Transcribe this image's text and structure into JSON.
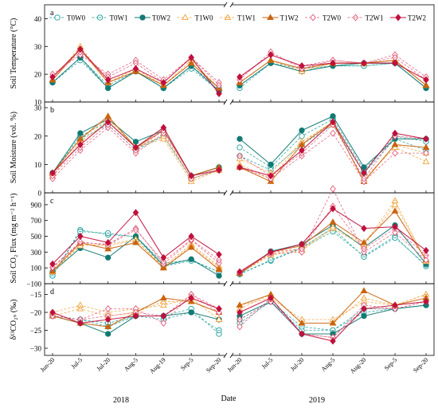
{
  "figure": {
    "xlabel": "Date",
    "year_labels": [
      "2018",
      "2019"
    ],
    "x_categories_2018": [
      "Jun-20",
      "Jul-5",
      "Jul-20",
      "Aug-5",
      "Aug-19",
      "Sep-5",
      "Sep-20"
    ],
    "x_categories_2019": [
      "Jun-20",
      "Jul-5",
      "Jul-20",
      "Aug-5",
      "Aug-20",
      "Sep-5",
      "Sep-20"
    ],
    "legend": [
      {
        "name": "T0W0",
        "color": "#1a9e9a",
        "marker": "circle",
        "filled": false,
        "dash": "dash"
      },
      {
        "name": "T0W1",
        "color": "#1a9e9a",
        "marker": "circle-x",
        "filled": false,
        "dash": "dash"
      },
      {
        "name": "T0W2",
        "color": "#127a73",
        "marker": "circle",
        "filled": true,
        "dash": "solid"
      },
      {
        "name": "T1W0",
        "color": "#f0a23a",
        "marker": "triangle",
        "filled": false,
        "dash": "dash"
      },
      {
        "name": "T1W1",
        "color": "#f0a23a",
        "marker": "triangle-x",
        "filled": false,
        "dash": "dash"
      },
      {
        "name": "T1W2",
        "color": "#c9640f",
        "marker": "triangle",
        "filled": true,
        "dash": "solid"
      },
      {
        "name": "T2W0",
        "color": "#e05a78",
        "marker": "diamond",
        "filled": false,
        "dash": "dash"
      },
      {
        "name": "T2W1",
        "color": "#e05a78",
        "marker": "diamond-x",
        "filled": false,
        "dash": "dash"
      },
      {
        "name": "T2W2",
        "color": "#c0103c",
        "marker": "diamond",
        "filled": true,
        "dash": "solid"
      }
    ]
  },
  "chart_data": [
    {
      "panel": "a",
      "type": "line",
      "ylabel": "Soil Temperature (°C)",
      "ylim": [
        10,
        45
      ],
      "yticks": [
        10,
        20,
        30,
        40
      ],
      "series": [
        {
          "name": "T0W0",
          "values_2018": [
            17,
            26,
            16,
            21,
            15,
            23,
            15
          ],
          "values_2019": [
            16,
            24,
            22,
            23,
            23,
            24,
            15
          ]
        },
        {
          "name": "T0W1",
          "values_2018": [
            17,
            25,
            15,
            21,
            15,
            22,
            14
          ],
          "values_2019": [
            15,
            24,
            21,
            23,
            23,
            24,
            15
          ]
        },
        {
          "name": "T0W2",
          "values_2018": [
            17,
            26,
            15,
            21,
            15,
            23,
            14
          ],
          "values_2019": [
            16,
            24,
            21,
            23,
            24,
            24,
            15
          ]
        },
        {
          "name": "T1W0",
          "values_2018": [
            18,
            29,
            17,
            22,
            16,
            24,
            15
          ],
          "values_2019": [
            17,
            25,
            22,
            24,
            24,
            25,
            16
          ]
        },
        {
          "name": "T1W1",
          "values_2018": [
            18,
            30,
            17,
            22,
            16,
            25,
            15
          ],
          "values_2019": [
            17,
            25,
            21,
            24,
            24,
            25,
            16
          ]
        },
        {
          "name": "T1W2",
          "values_2018": [
            18,
            29,
            17,
            21,
            16,
            24,
            15
          ],
          "values_2019": [
            17,
            25,
            22,
            24,
            24,
            25,
            16
          ]
        },
        {
          "name": "T2W0",
          "values_2018": [
            20,
            27,
            20,
            25,
            18,
            26,
            17
          ],
          "values_2019": [
            19,
            27,
            23,
            25,
            24,
            27,
            19
          ]
        },
        {
          "name": "T2W1",
          "values_2018": [
            19,
            28,
            19,
            24,
            17,
            26,
            16
          ],
          "values_2019": [
            18,
            28,
            22,
            25,
            24,
            26,
            18
          ]
        },
        {
          "name": "T2W2",
          "values_2018": [
            19,
            29,
            18,
            22,
            17,
            26,
            13
          ],
          "values_2019": [
            19,
            27,
            23,
            24,
            24,
            24,
            18
          ]
        }
      ]
    },
    {
      "panel": "b",
      "type": "line",
      "ylabel": "Soil Moisture (vol. %)",
      "ylim": [
        0,
        32
      ],
      "yticks": [
        0,
        10,
        20,
        30
      ],
      "series": [
        {
          "name": "T0W0",
          "values_2018": [
            7,
            20,
            25,
            16,
            20,
            5,
            8
          ],
          "values_2019": [
            16,
            9,
            20,
            26,
            8,
            20,
            18
          ]
        },
        {
          "name": "T0W1",
          "values_2018": [
            7,
            19,
            24,
            15,
            20,
            5,
            8
          ],
          "values_2019": [
            13,
            8,
            17,
            24,
            7,
            19,
            15
          ]
        },
        {
          "name": "T0W2",
          "values_2018": [
            7,
            21,
            26,
            18,
            22,
            6,
            9
          ],
          "values_2019": [
            19,
            10,
            22,
            27,
            9,
            19,
            19
          ]
        },
        {
          "name": "T1W0",
          "values_2018": [
            6,
            18,
            25,
            16,
            19,
            4,
            8
          ],
          "values_2019": [
            12,
            7,
            18,
            24,
            5,
            16,
            11
          ]
        },
        {
          "name": "T1W1",
          "values_2018": [
            7,
            19,
            26,
            16,
            20,
            5,
            8
          ],
          "values_2019": [
            10,
            5,
            18,
            25,
            4,
            17,
            14
          ]
        },
        {
          "name": "T1W2",
          "values_2018": [
            7,
            19,
            27,
            16,
            22,
            6,
            9
          ],
          "values_2019": [
            9,
            4,
            17,
            25,
            4,
            17,
            16
          ]
        },
        {
          "name": "T2W0",
          "values_2018": [
            5,
            15,
            23,
            14,
            21,
            5,
            8
          ],
          "values_2019": [
            9,
            5,
            13,
            21,
            4,
            14,
            14
          ]
        },
        {
          "name": "T2W1",
          "values_2018": [
            6,
            16,
            24,
            15,
            22,
            6,
            8
          ],
          "values_2019": [
            13,
            6,
            14,
            24,
            5,
            20,
            19
          ]
        },
        {
          "name": "T2W2",
          "values_2018": [
            7,
            17,
            25,
            16,
            23,
            6,
            8
          ],
          "values_2019": [
            9,
            6,
            15,
            25,
            7,
            21,
            19
          ]
        }
      ]
    },
    {
      "panel": "c",
      "type": "line",
      "ylabel": "Soil CO₂ Flux (mg m⁻² h⁻¹)",
      "ylim": [
        -100,
        1050
      ],
      "yticks": [
        -100,
        100,
        300,
        500,
        700,
        900
      ],
      "series": [
        {
          "name": "T0W0",
          "values_2018": [
            0,
            580,
            520,
            500,
            160,
            200,
            50
          ],
          "values_2019": [
            20,
            190,
            350,
            560,
            250,
            500,
            120
          ]
        },
        {
          "name": "T0W1",
          "values_2018": [
            0,
            560,
            540,
            490,
            120,
            190,
            50
          ],
          "values_2019": [
            20,
            200,
            360,
            600,
            240,
            480,
            140
          ]
        },
        {
          "name": "T0W2",
          "values_2018": [
            50,
            350,
            230,
            500,
            130,
            210,
            0
          ],
          "values_2019": [
            20,
            310,
            400,
            640,
            360,
            640,
            150
          ]
        },
        {
          "name": "T1W0",
          "values_2018": [
            50,
            400,
            380,
            450,
            120,
            400,
            120
          ],
          "values_2019": [
            30,
            260,
            320,
            600,
            380,
            900,
            200
          ]
        },
        {
          "name": "T1W1",
          "values_2018": [
            50,
            380,
            400,
            460,
            100,
            380,
            100
          ],
          "values_2019": [
            30,
            280,
            340,
            620,
            400,
            950,
            180
          ]
        },
        {
          "name": "T1W2",
          "values_2018": [
            60,
            420,
            340,
            420,
            100,
            360,
            80
          ],
          "values_2019": [
            30,
            300,
            380,
            680,
            420,
            820,
            200
          ]
        },
        {
          "name": "T2W0",
          "values_2018": [
            100,
            420,
            400,
            600,
            150,
            450,
            160
          ],
          "values_2019": [
            40,
            280,
            300,
            1100,
            300,
            550,
            200
          ]
        },
        {
          "name": "T2W1",
          "values_2018": [
            110,
            430,
            390,
            580,
            180,
            460,
            200
          ],
          "values_2019": [
            40,
            300,
            340,
            880,
            340,
            600,
            260
          ]
        },
        {
          "name": "T2W2",
          "values_2018": [
            150,
            500,
            420,
            800,
            230,
            500,
            270
          ],
          "values_2019": [
            50,
            300,
            400,
            850,
            600,
            620,
            320
          ]
        }
      ]
    },
    {
      "panel": "d",
      "type": "line",
      "ylabel": "δ¹³CO₂ₛ (‰)",
      "ylim": [
        -32,
        -12
      ],
      "yticks": [
        -30,
        -25,
        -20,
        -15
      ],
      "series": [
        {
          "name": "T0W0",
          "values_2018": [
            -21,
            -22,
            -23,
            -21,
            -21,
            -19,
            -26
          ],
          "values_2019": [
            -23,
            -17,
            -25,
            -25,
            -19,
            -19,
            -18
          ]
        },
        {
          "name": "T0W1",
          "values_2018": [
            -21,
            -22,
            -24,
            -21,
            -22,
            -20,
            -25
          ],
          "values_2019": [
            -22,
            -17,
            -24,
            -25,
            -20,
            -19,
            -18
          ]
        },
        {
          "name": "T0W2",
          "values_2018": [
            -21,
            -23,
            -26,
            -21,
            -21,
            -20,
            -22
          ],
          "values_2019": [
            -21,
            -17,
            -26,
            -26,
            -21,
            -19,
            -18
          ]
        },
        {
          "name": "T1W0",
          "values_2018": [
            -20,
            -18,
            -20,
            -19,
            -18,
            -16,
            -22
          ],
          "values_2019": [
            -18,
            -16,
            -22,
            -22,
            -17,
            -18,
            -15
          ]
        },
        {
          "name": "T1W1",
          "values_2018": [
            -21,
            -19,
            -21,
            -20,
            -17,
            -17,
            -20
          ],
          "values_2019": [
            -19,
            -15,
            -23,
            -23,
            -16,
            -18,
            -15
          ]
        },
        {
          "name": "T1W2",
          "values_2018": [
            -21,
            -23,
            -24,
            -20,
            -16,
            -17,
            -20
          ],
          "values_2019": [
            -18,
            -15,
            -23,
            -23,
            -14,
            -18,
            -16
          ]
        },
        {
          "name": "T2W0",
          "values_2018": [
            -21,
            -22,
            -19,
            -19,
            -23,
            -15,
            -20
          ],
          "values_2019": [
            -24,
            -16,
            -26,
            -27,
            -18,
            -19,
            -17
          ]
        },
        {
          "name": "T2W1",
          "values_2018": [
            -21,
            -22,
            -21,
            -20,
            -21,
            -15,
            -19
          ],
          "values_2019": [
            -22,
            -17,
            -26,
            -27,
            -19,
            -19,
            -17
          ]
        },
        {
          "name": "T2W2",
          "values_2018": [
            -20,
            -23,
            -22,
            -21,
            -21,
            -16,
            -19
          ],
          "values_2019": [
            -20,
            -16,
            -26,
            -28,
            -19,
            -18,
            -17
          ]
        }
      ]
    }
  ]
}
